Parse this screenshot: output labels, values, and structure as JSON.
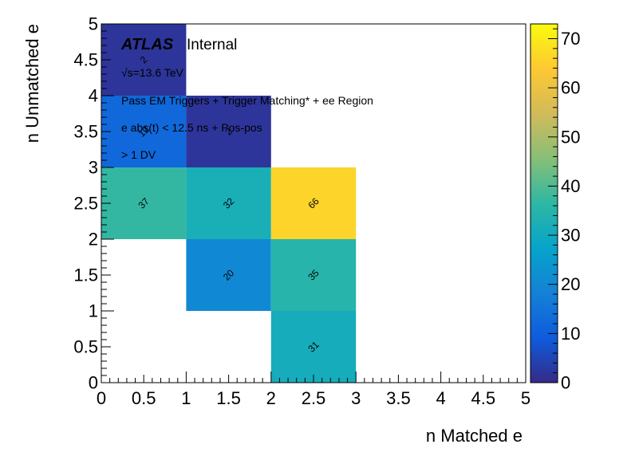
{
  "chart_data": {
    "type": "heatmap",
    "xlabel": "n Matched e",
    "ylabel": "n Unmatched e",
    "xlim": [
      0,
      5
    ],
    "ylim": [
      0,
      5
    ],
    "zlim": [
      0,
      73
    ],
    "x_ticks": [
      "0",
      "0.5",
      "1",
      "1.5",
      "2",
      "2.5",
      "3",
      "3.5",
      "4",
      "4.5",
      "5"
    ],
    "y_ticks": [
      "0",
      "0.5",
      "1",
      "1.5",
      "2",
      "2.5",
      "3",
      "3.5",
      "4",
      "4.5",
      "5"
    ],
    "z_ticks": [
      "0",
      "10",
      "20",
      "30",
      "40",
      "50",
      "60",
      "70"
    ],
    "cells": [
      {
        "x": [
          0,
          1
        ],
        "y": [
          4,
          5
        ],
        "value": 2
      },
      {
        "x": [
          0,
          1
        ],
        "y": [
          3,
          4
        ],
        "value": 12
      },
      {
        "x": [
          1,
          2
        ],
        "y": [
          3,
          4
        ],
        "value": 2
      },
      {
        "x": [
          0,
          1
        ],
        "y": [
          2,
          3
        ],
        "value": 37
      },
      {
        "x": [
          1,
          2
        ],
        "y": [
          2,
          3
        ],
        "value": 32
      },
      {
        "x": [
          2,
          3
        ],
        "y": [
          2,
          3
        ],
        "value": 66
      },
      {
        "x": [
          1,
          2
        ],
        "y": [
          1,
          2
        ],
        "value": 20
      },
      {
        "x": [
          2,
          3
        ],
        "y": [
          1,
          2
        ],
        "value": 35
      },
      {
        "x": [
          2,
          3
        ],
        "y": [
          0,
          1
        ],
        "value": 31
      }
    ],
    "colormap": [
      "#352a87",
      "#0f5cdd",
      "#1481d6",
      "#06a4ca",
      "#2eb7a4",
      "#87bf77",
      "#d1bb59",
      "#fec832",
      "#f9fb0e"
    ],
    "annotations": {
      "atlas": "ATLAS",
      "internal": "Internal",
      "energy": "√s=13.6 TeV",
      "line1": "Pass EM Triggers + Trigger Matching* + ee Region",
      "line2": "e abs(t) < 12.5 ns + Pos-pos",
      "line3": "> 1 DV"
    }
  }
}
